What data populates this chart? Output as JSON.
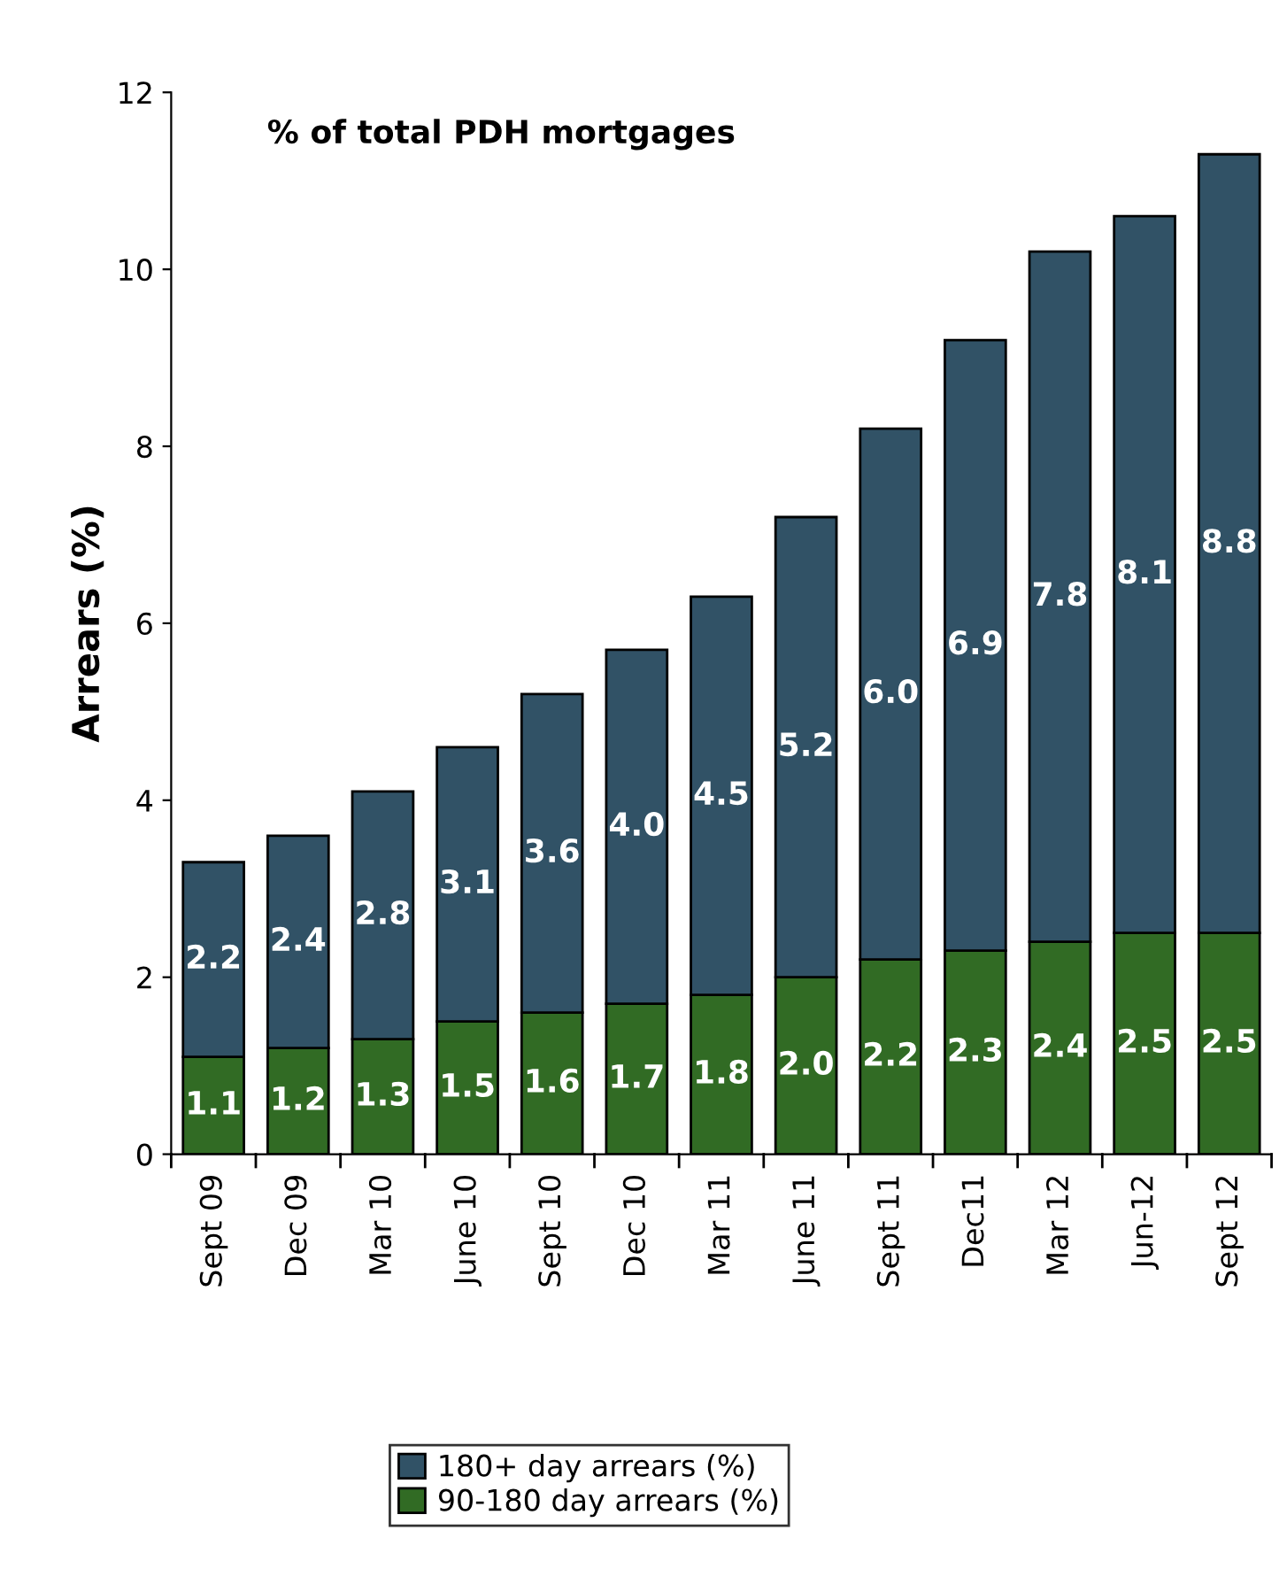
{
  "chart_data": {
    "type": "bar",
    "title": "% of total PDH mortgages",
    "ylabel": "Arrears (%)",
    "stacked": true,
    "legend": "bottom",
    "grid": false,
    "ylim": [
      0,
      12
    ],
    "yticks": [
      0,
      2,
      4,
      6,
      8,
      10,
      12
    ],
    "categories": [
      "Sept 09",
      "Dec 09",
      "Mar 10",
      "June 10",
      "Sept 10",
      "Dec 10",
      "Mar 11",
      "June 11",
      "Sept 11",
      "Dec11",
      "Mar 12",
      "Jun-12",
      "Sept 12"
    ],
    "series": [
      {
        "name": "90-180 day arrears (%)",
        "color": "#316b24",
        "values": [
          1.1,
          1.2,
          1.3,
          1.5,
          1.6,
          1.7,
          1.8,
          2.0,
          2.2,
          2.3,
          2.4,
          2.5,
          2.5
        ],
        "value_labels": [
          "1.1",
          "1.2",
          "1.3",
          "1.5",
          "1.6",
          "1.7",
          "1.8",
          "2.0",
          "2.2",
          "2.3",
          "2.4",
          "2.5",
          "2.5"
        ]
      },
      {
        "name": "180+ day arrears (%)",
        "color": "#315266",
        "values": [
          2.2,
          2.4,
          2.8,
          3.1,
          3.6,
          4.0,
          4.5,
          5.2,
          6.0,
          6.9,
          7.8,
          8.1,
          8.8
        ],
        "value_labels": [
          "2.2",
          "2.4",
          "2.8",
          "3.1",
          "3.6",
          "4.0",
          "4.5",
          "5.2",
          "6.0",
          "6.9",
          "7.8",
          "8.1",
          "8.8"
        ]
      }
    ]
  }
}
